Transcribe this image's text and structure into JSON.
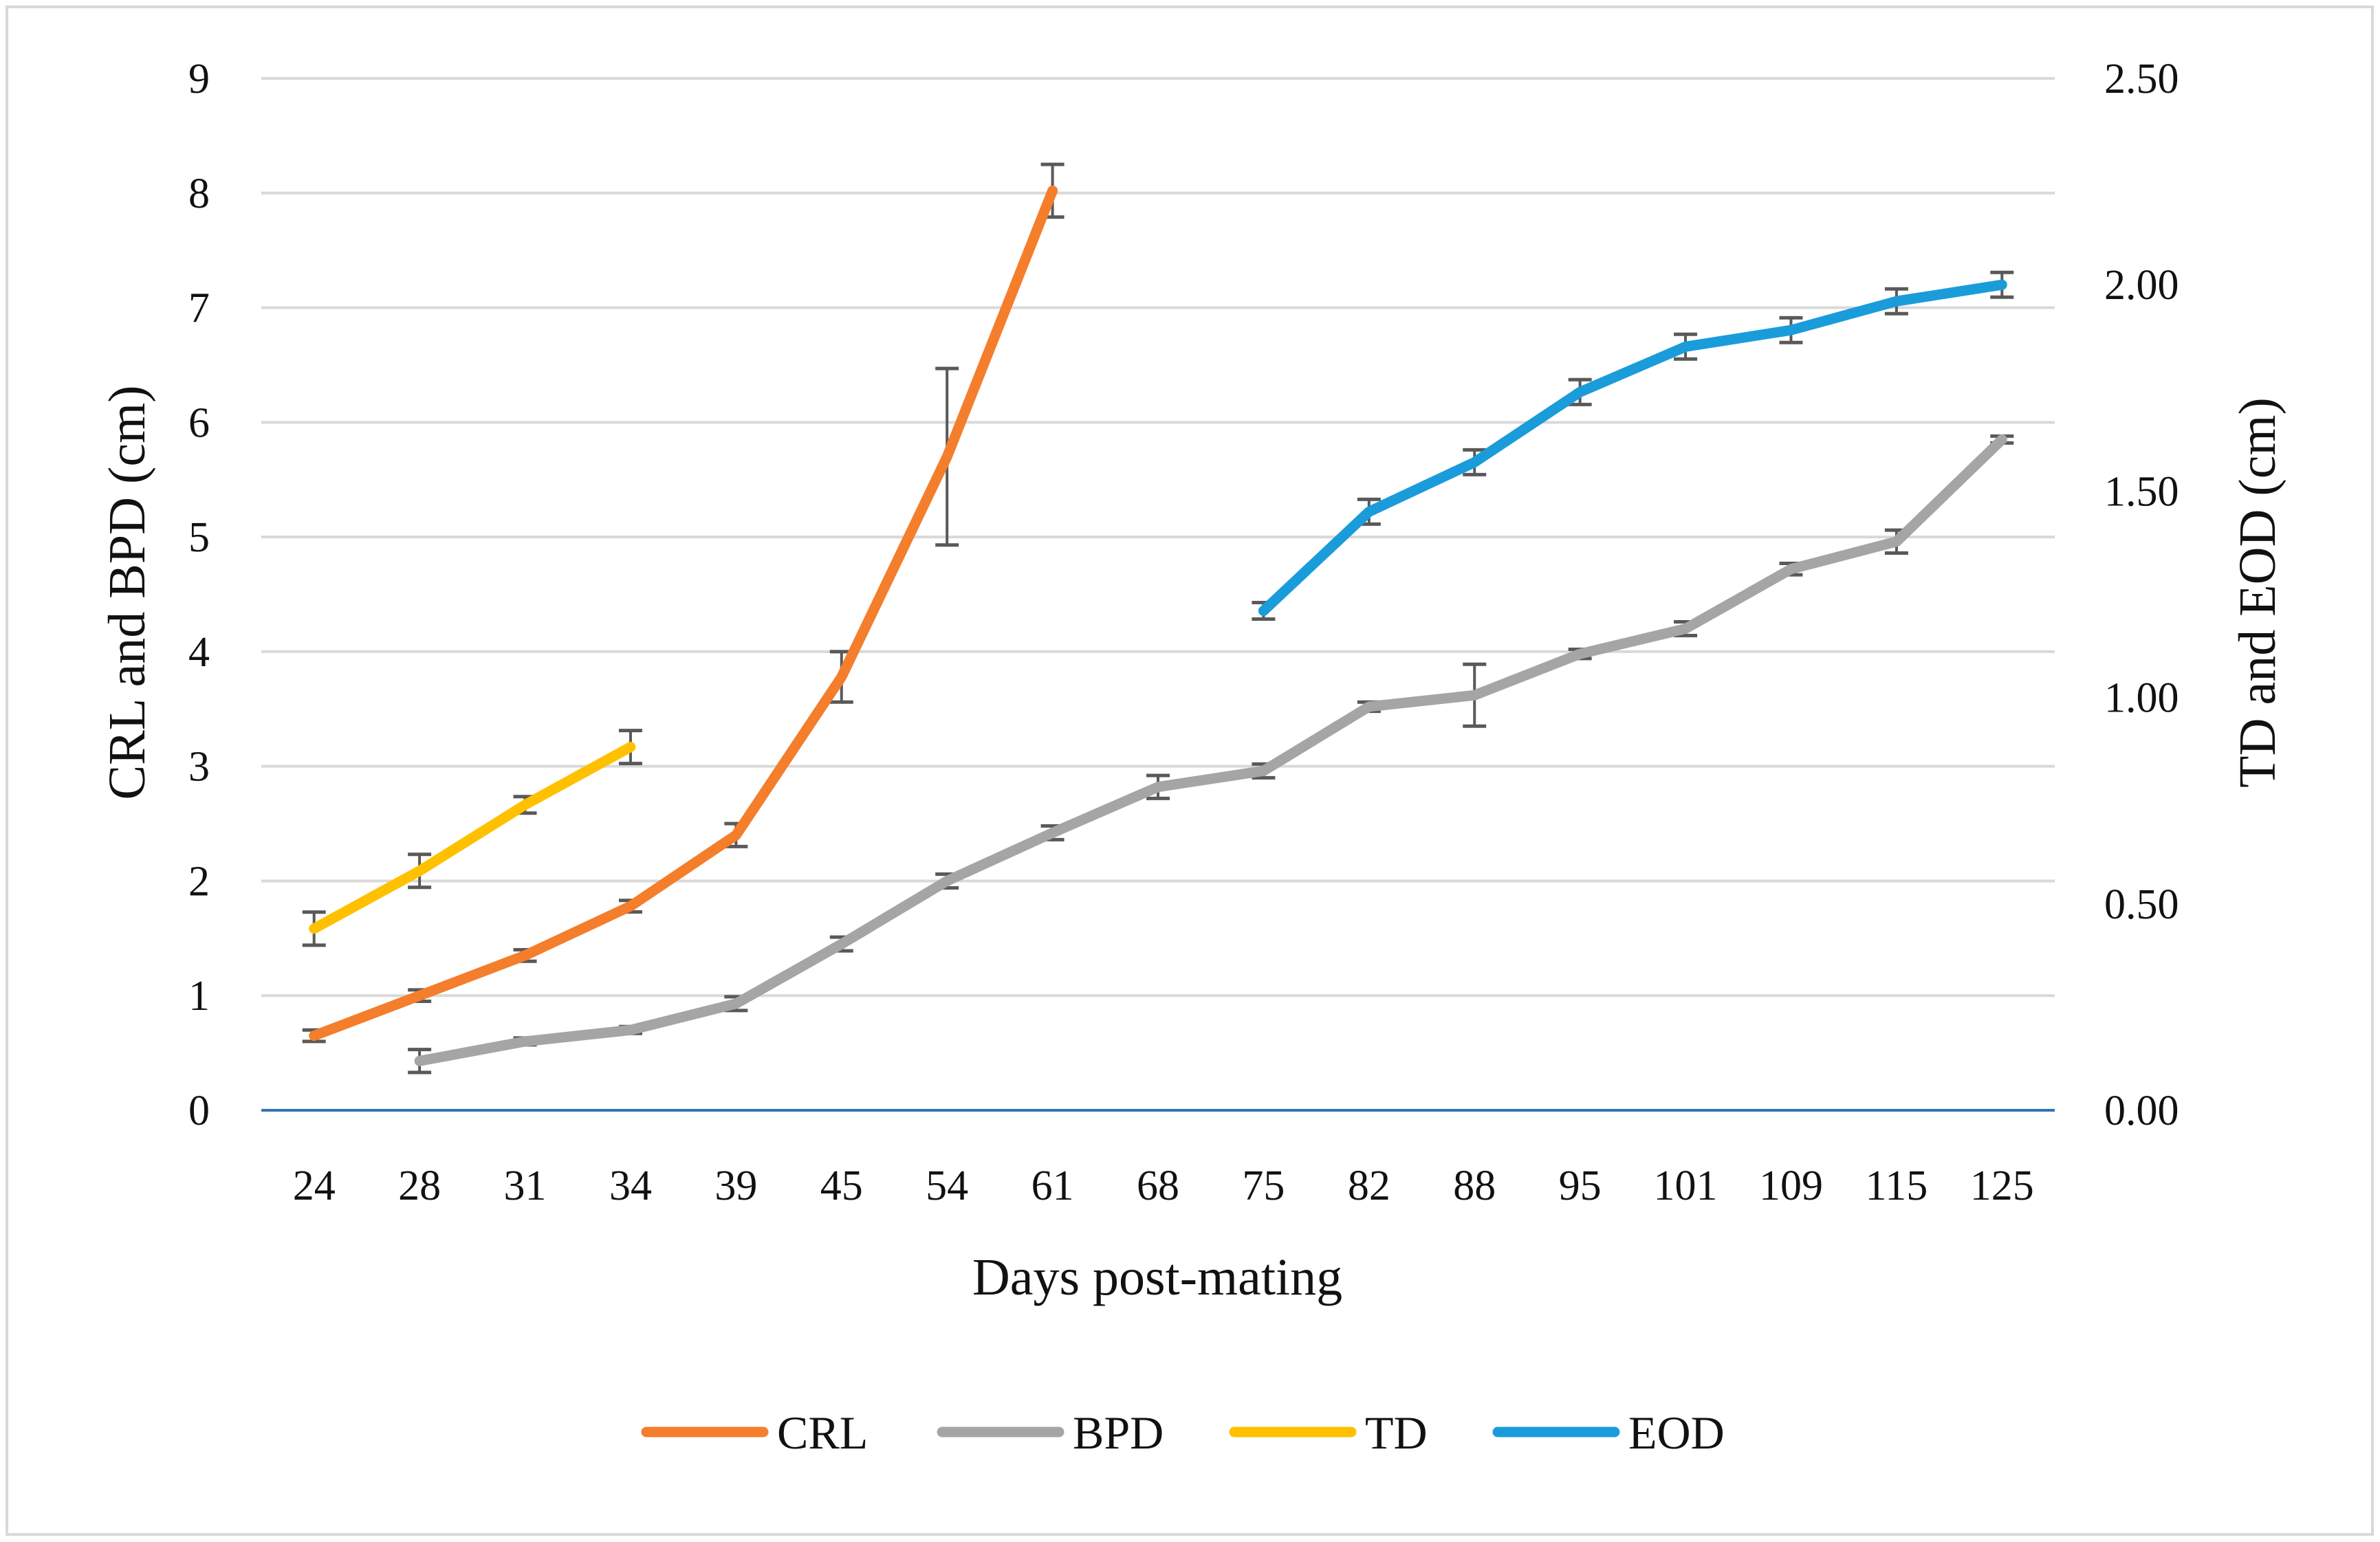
{
  "chart_data": {
    "type": "line",
    "title": "",
    "xlabel": "Days post-mating",
    "ylabel": "CRL and BPD (cm)",
    "y2label": "TD and EOD (cm)",
    "categories": [
      "24",
      "28",
      "31",
      "34",
      "39",
      "45",
      "54",
      "61",
      "68",
      "75",
      "82",
      "88",
      "95",
      "101",
      "109",
      "115",
      "125"
    ],
    "ylim": [
      0,
      9
    ],
    "y_ticks": [
      "0",
      "1",
      "2",
      "3",
      "4",
      "5",
      "6",
      "7",
      "8",
      "9"
    ],
    "y2lim": [
      0,
      2.5
    ],
    "y2_ticks": [
      "0.00",
      "0.50",
      "1.00",
      "1.50",
      "2.00",
      "2.50"
    ],
    "grid": true,
    "legend_position": "bottom",
    "series": [
      {
        "name": "CRL",
        "axis": "left",
        "color": "#F47E2B",
        "values": [
          0.65,
          1.0,
          1.35,
          1.78,
          2.4,
          3.78,
          5.7,
          8.02,
          null,
          null,
          null,
          null,
          null,
          null,
          null,
          null,
          null
        ],
        "errors": [
          0.05,
          0.05,
          0.05,
          0.05,
          0.1,
          0.22,
          0.77,
          0.23,
          null,
          null,
          null,
          null,
          null,
          null,
          null,
          null,
          null
        ]
      },
      {
        "name": "BPD",
        "axis": "left",
        "color": "#A5A5A5",
        "values": [
          null,
          0.43,
          0.6,
          0.7,
          0.93,
          1.45,
          2.0,
          2.42,
          2.82,
          2.96,
          3.52,
          3.62,
          3.98,
          4.2,
          4.72,
          4.96,
          5.85
        ],
        "errors": [
          null,
          0.1,
          0.03,
          0.03,
          0.06,
          0.06,
          0.06,
          0.06,
          0.1,
          0.06,
          0.04,
          0.27,
          0.04,
          0.06,
          0.05,
          0.1,
          0.03
        ]
      },
      {
        "name": "TD",
        "axis": "right",
        "color": "#FFC000",
        "values": [
          0.44,
          0.58,
          0.74,
          0.88,
          null,
          null,
          null,
          null,
          null,
          null,
          null,
          null,
          null,
          null,
          null,
          null,
          null
        ],
        "errors": [
          0.04,
          0.04,
          0.02,
          0.04,
          null,
          null,
          null,
          null,
          null,
          null,
          null,
          null,
          null,
          null,
          null,
          null,
          null
        ]
      },
      {
        "name": "EOD",
        "axis": "right",
        "color": "#1A9CDB",
        "values": [
          null,
          null,
          null,
          null,
          null,
          null,
          null,
          null,
          null,
          1.21,
          1.45,
          1.57,
          1.74,
          1.85,
          1.89,
          1.96,
          2.0
        ],
        "errors": [
          null,
          null,
          null,
          null,
          null,
          null,
          null,
          null,
          null,
          0.02,
          0.03,
          0.03,
          0.03,
          0.03,
          0.03,
          0.03,
          0.03
        ]
      }
    ]
  }
}
